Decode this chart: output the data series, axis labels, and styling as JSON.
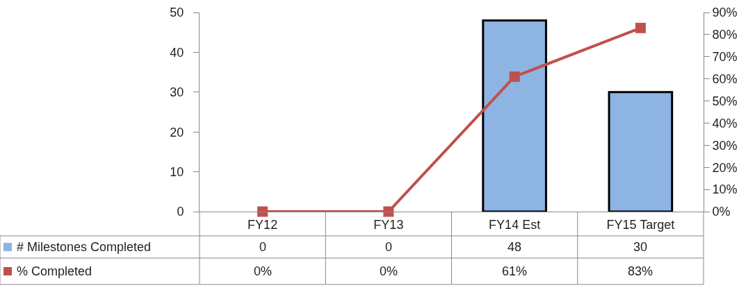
{
  "chart_data": {
    "type": "bar",
    "categories": [
      "FY12",
      "FY13",
      "FY14 Est",
      "FY15 Target"
    ],
    "series": [
      {
        "name": "# Milestones Completed",
        "color": "#8db4e2",
        "values": [
          0,
          0,
          48,
          30
        ]
      },
      {
        "name": "% Completed",
        "type": "line",
        "axis": "y2",
        "color": "#c0504d",
        "values": [
          0,
          0,
          61,
          83
        ],
        "value_labels": [
          "0%",
          "0%",
          "61%",
          "83%"
        ]
      }
    ],
    "data_labels": true,
    "legend": "bottom left",
    "marker": "square",
    "line_style": "solid",
    "ylim": [
      0,
      50
    ],
    "yticks": [
      0,
      10,
      20,
      30,
      40,
      50
    ],
    "y2lim": [
      0,
      90
    ],
    "y2ticks": [
      {
        "value": 0,
        "label": "0%"
      },
      {
        "value": 10,
        "label": "10%"
      },
      {
        "value": 20,
        "label": "20%"
      },
      {
        "value": 30,
        "label": "30%"
      },
      {
        "value": 40,
        "label": "40%"
      },
      {
        "value": 50,
        "label": "50%"
      },
      {
        "value": 60,
        "label": "60%"
      },
      {
        "value": 70,
        "label": "70%"
      },
      {
        "value": 80,
        "label": "80%"
      },
      {
        "value": 90,
        "label": "90%"
      }
    ]
  }
}
